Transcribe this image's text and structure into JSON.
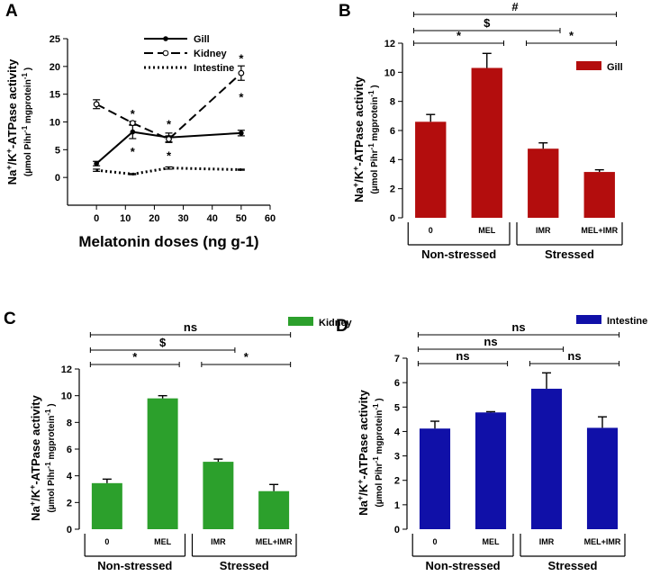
{
  "chart_data": [
    {
      "panel": "A",
      "type": "line",
      "xlabel": "Melatonin doses (ng g-1)",
      "ylabel_main": "Na+/K+-ATPase activity",
      "ylabel_sub": "(µmol Pihr-1 mgprotein-1)",
      "xlim": [
        -10,
        60
      ],
      "ylim": [
        -5,
        25
      ],
      "xticks": [
        "0",
        "10",
        "20",
        "30",
        "40",
        "50",
        "60"
      ],
      "yticks": [
        "0",
        "5",
        "10",
        "15",
        "20",
        "25"
      ],
      "x": [
        0,
        12.5,
        25,
        50
      ],
      "series": [
        {
          "name": "Gill",
          "values": [
            2.5,
            8.2,
            7.2,
            8.0
          ],
          "errors": [
            0.4,
            1.2,
            0.8,
            0.5
          ],
          "style": "solid"
        },
        {
          "name": "Kidney",
          "values": [
            13.2,
            9.8,
            6.9,
            18.8
          ],
          "errors": [
            0.8,
            0.3,
            0.6,
            1.3
          ],
          "style": "dashed"
        },
        {
          "name": "Intestine",
          "values": [
            1.3,
            0.6,
            1.7,
            1.4
          ],
          "errors": [
            0.2,
            0.1,
            0.2,
            0.1
          ],
          "style": "dotted"
        }
      ],
      "annotations": [
        {
          "x": 12.5,
          "y": 12,
          "text": "*"
        },
        {
          "x": 12.5,
          "y": 5.2,
          "text": "*"
        },
        {
          "x": 25,
          "y": 10.2,
          "text": "*"
        },
        {
          "x": 25,
          "y": 4.5,
          "text": "*"
        },
        {
          "x": 50,
          "y": 22,
          "text": "*"
        },
        {
          "x": 50,
          "y": 15,
          "text": "*"
        }
      ]
    },
    {
      "panel": "B",
      "type": "bar",
      "legend": "Gill",
      "color": "#b30d0d",
      "categories": [
        "0",
        "MEL",
        "IMR",
        "MEL+IMR"
      ],
      "values": [
        6.6,
        10.3,
        4.75,
        3.15
      ],
      "errors": [
        0.5,
        1.0,
        0.4,
        0.15
      ],
      "ylim": [
        0,
        12
      ],
      "yticks": [
        "0",
        "2",
        "4",
        "6",
        "8",
        "10",
        "12"
      ],
      "ylabel_main": "Na+/K+-ATPase activity",
      "ylabel_sub": "(µmol Pihr-1 mgprotein-1)",
      "groups": [
        "Non-stressed",
        "Stressed"
      ],
      "comparisons": [
        {
          "from": 0,
          "to": 3,
          "label": "#"
        },
        {
          "from": 0,
          "to": 2,
          "label": "$"
        },
        {
          "from": 0,
          "to": 1,
          "label": "*"
        },
        {
          "from": 2,
          "to": 3,
          "label": "*"
        }
      ]
    },
    {
      "panel": "C",
      "type": "bar",
      "legend": "Kidney",
      "color": "#2ca02c",
      "categories": [
        "0",
        "MEL",
        "IMR",
        "MEL+IMR"
      ],
      "values": [
        3.45,
        9.8,
        5.05,
        2.85
      ],
      "errors": [
        0.3,
        0.2,
        0.2,
        0.5
      ],
      "ylim": [
        0,
        12
      ],
      "yticks": [
        "0",
        "2",
        "4",
        "6",
        "8",
        "10",
        "12"
      ],
      "ylabel_main": "Na+/K+-ATPase activity",
      "ylabel_sub": "(µmol Pihr-1 mgprotein-1)",
      "groups": [
        "Non-stressed",
        "Stressed"
      ],
      "comparisons": [
        {
          "from": 0,
          "to": 3,
          "label": "ns"
        },
        {
          "from": 0,
          "to": 2,
          "label": "$"
        },
        {
          "from": 0,
          "to": 1,
          "label": "*"
        },
        {
          "from": 2,
          "to": 3,
          "label": "*"
        }
      ]
    },
    {
      "panel": "D",
      "type": "bar",
      "legend": "Intestine",
      "color": "#1010a8",
      "categories": [
        "0",
        "MEL",
        "IMR",
        "MEL+IMR"
      ],
      "values": [
        4.12,
        4.78,
        5.75,
        4.15
      ],
      "errors": [
        0.3,
        0.03,
        0.65,
        0.45
      ],
      "ylim": [
        0,
        7
      ],
      "yticks": [
        "0",
        "1",
        "2",
        "3",
        "4",
        "5",
        "6",
        "7"
      ],
      "ylabel_main": "Na+/K+-ATPase activity",
      "ylabel_sub": "(µmol Pihr-1 mgprotein-1)",
      "groups": [
        "Non-stressed",
        "Stressed"
      ],
      "comparisons": [
        {
          "from": 0,
          "to": 3,
          "label": "ns"
        },
        {
          "from": 0,
          "to": 2,
          "label": "ns"
        },
        {
          "from": 0,
          "to": 1,
          "label": "ns"
        },
        {
          "from": 2,
          "to": 3,
          "label": "ns"
        }
      ]
    }
  ]
}
